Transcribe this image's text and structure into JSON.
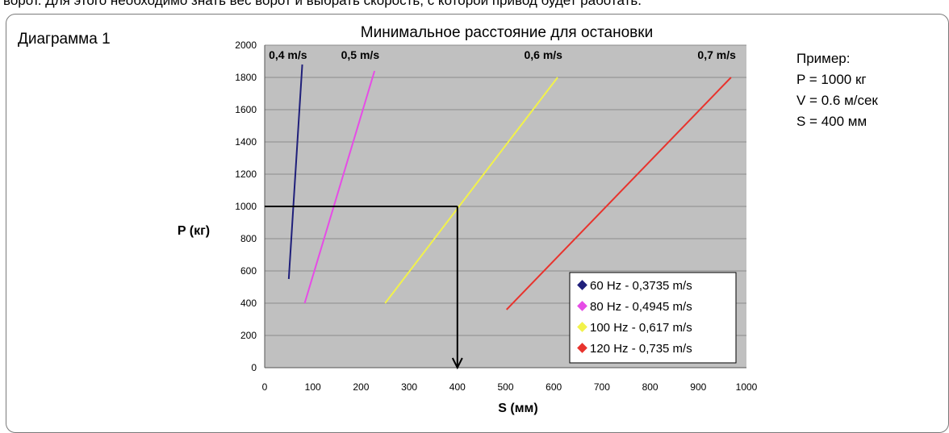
{
  "page": {
    "top_text": "ворот. Для этого необходимо знать вес ворот и выбрать скорость, с которой привод будет работать.",
    "diagram_label": "Диаграмма 1",
    "example": {
      "title": "Пример:",
      "lines": [
        "P = 1000 кг",
        "V = 0.6 м/сек",
        "S = 400 мм"
      ]
    }
  },
  "chart_data": {
    "type": "line",
    "title": "Минимальное расстояние для остановки",
    "xlabel": "S (мм)",
    "ylabel": "P (кг)",
    "xlim": [
      0,
      1000
    ],
    "ylim": [
      0,
      2000
    ],
    "xticks": [
      "0",
      "100",
      "200",
      "300",
      "400",
      "500",
      "600",
      "700",
      "800",
      "900",
      "1000"
    ],
    "yticks": [
      "0",
      "200",
      "400",
      "600",
      "800",
      "1000",
      "1200",
      "1400",
      "1600",
      "1800",
      "2000"
    ],
    "grid": "horizontal",
    "legend_position": "bottom-right",
    "series": [
      {
        "name": "60 Hz - 0,3735 m/s",
        "color": "#1f1f7a",
        "top_label": "0,4 m/s",
        "x": [
          50,
          78
        ],
        "y": [
          550,
          1880
        ]
      },
      {
        "name": "80 Hz - 0,4945 m/s",
        "color": "#e64ce6",
        "top_label": "0,5 m/s",
        "x": [
          83,
          228
        ],
        "y": [
          400,
          1840
        ]
      },
      {
        "name": "100 Hz - 0,617 m/s",
        "color": "#f2f24a",
        "top_label": "0,6 m/s",
        "x": [
          250,
          608
        ],
        "y": [
          400,
          1800
        ]
      },
      {
        "name": "120 Hz - 0,735 m/s",
        "color": "#e8332d",
        "top_label": "0,7 m/s",
        "x": [
          502,
          968
        ],
        "y": [
          360,
          1800
        ]
      }
    ],
    "example_arrow": {
      "x": 400,
      "y": 1000
    }
  }
}
